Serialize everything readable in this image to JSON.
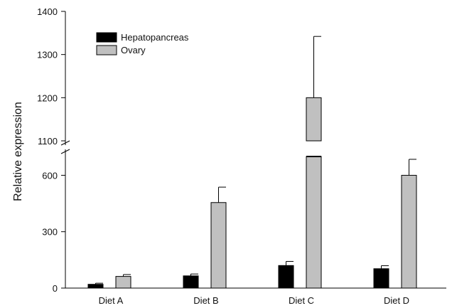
{
  "chart_data": {
    "type": "bar",
    "ylabel": "Relative expression",
    "xlabel": "",
    "categories": [
      "Diet A",
      "Diet B",
      "Diet C",
      "Diet D"
    ],
    "series": [
      {
        "name": "Hepatopancreas",
        "color": "#000000",
        "values": [
          20,
          65,
          120,
          103
        ],
        "errors": [
          6,
          10,
          22,
          16
        ]
      },
      {
        "name": "Ovary",
        "color": "#c0c0c0",
        "values": [
          62,
          455,
          1200,
          600
        ],
        "errors": [
          10,
          82,
          142,
          85
        ]
      }
    ],
    "y_axis_broken": true,
    "y_segments": [
      {
        "range": [
          0,
          700
        ],
        "ticks": [
          0,
          300,
          600
        ]
      },
      {
        "range": [
          1100,
          1400
        ],
        "ticks": [
          1100,
          1200,
          1300,
          1400
        ]
      }
    ],
    "legend": "top-left",
    "grid": false
  }
}
